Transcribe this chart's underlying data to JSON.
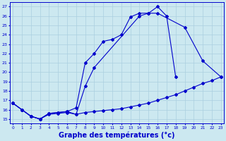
{
  "background_color": "#cce8f0",
  "grid_color": "#aacfdf",
  "line_color": "#0000cc",
  "xlabel": "Graphe des températures (°c)",
  "xlabel_fontsize": 7,
  "ylabel_min": 15,
  "ylabel_max": 27,
  "xmin": 0,
  "xmax": 23,
  "line1_x": [
    0,
    1,
    2,
    3,
    4,
    5,
    6,
    7,
    8,
    9,
    10,
    11,
    12,
    13,
    14,
    15,
    16,
    17,
    18
  ],
  "line1_y": [
    16.7,
    16.0,
    15.3,
    15.0,
    15.6,
    15.7,
    15.8,
    16.2,
    21.0,
    22.0,
    23.3,
    23.5,
    24.0,
    25.9,
    26.3,
    26.3,
    27.0,
    26.0,
    19.5
  ],
  "line2_x": [
    0,
    1,
    2,
    3,
    4,
    5,
    6,
    7,
    8,
    9,
    14,
    15,
    16,
    19,
    21,
    23
  ],
  "line2_y": [
    16.7,
    16.0,
    15.3,
    15.0,
    15.6,
    15.7,
    15.8,
    15.5,
    18.5,
    20.5,
    26.0,
    26.3,
    26.3,
    24.8,
    21.2,
    19.5
  ],
  "line3_x": [
    0,
    1,
    2,
    3,
    4,
    5,
    6,
    7,
    8,
    9,
    10,
    11,
    12,
    13,
    14,
    15,
    16,
    17,
    18,
    19,
    20,
    21,
    22,
    23
  ],
  "line3_y": [
    16.7,
    16.0,
    15.3,
    15.0,
    15.5,
    15.6,
    15.7,
    15.5,
    15.7,
    15.8,
    15.9,
    16.0,
    16.1,
    16.3,
    16.5,
    16.7,
    17.0,
    17.3,
    17.6,
    18.0,
    18.4,
    18.8,
    19.1,
    19.5
  ],
  "xticks": [
    0,
    1,
    2,
    3,
    4,
    5,
    6,
    7,
    8,
    9,
    10,
    11,
    12,
    13,
    14,
    15,
    16,
    17,
    18,
    19,
    20,
    21,
    22,
    23
  ],
  "yticks": [
    15,
    16,
    17,
    18,
    19,
    20,
    21,
    22,
    23,
    24,
    25,
    26,
    27
  ]
}
